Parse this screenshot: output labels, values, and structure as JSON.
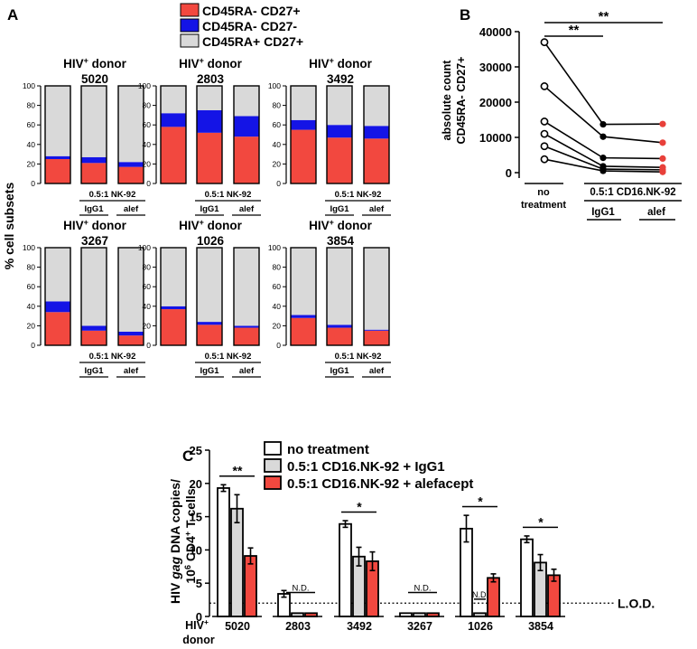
{
  "panels": {
    "a": "A",
    "b": "B",
    "c": "C"
  },
  "colors": {
    "cd45ra_neg_cd27_pos": "#f2483f",
    "cd45ra_neg_cd27_neg": "#1414e6",
    "cd45ra_pos_cd27_pos": "#d9d9d9",
    "alef_point": "#e8403a"
  },
  "legend_a": [
    "CD45RA- CD27+",
    "CD45RA- CD27-",
    "CD45RA+ CD27+"
  ],
  "chart_data": [
    {
      "type": "bar",
      "subtype": "stacked-percent",
      "ylabel": "% cell subsets",
      "ylim": [
        0,
        100
      ],
      "yticks": [
        "0",
        "20",
        "40",
        "60",
        "80",
        "100"
      ],
      "donor_label": "HIV+ donor",
      "donor_prefix": "HIV",
      "donor_sup": "+",
      "donor_suffix": " donor",
      "treatment_label": "0.5:1 NK-92",
      "group_labels": [
        "IgG1",
        "alef"
      ],
      "series": [
        "CD45RA- CD27+",
        "CD45RA- CD27-",
        "CD45RA+ CD27+"
      ],
      "donors": [
        {
          "id": "5020",
          "bars": [
            [
              25,
              3,
              72
            ],
            [
              21,
              6,
              73
            ],
            [
              17,
              5,
              78
            ]
          ]
        },
        {
          "id": "2803",
          "bars": [
            [
              58,
              14,
              28
            ],
            [
              52,
              23,
              25
            ],
            [
              48,
              21,
              31
            ]
          ]
        },
        {
          "id": "3492",
          "bars": [
            [
              55,
              10,
              35
            ],
            [
              47,
              13,
              40
            ],
            [
              46,
              13,
              41
            ]
          ]
        },
        {
          "id": "3267",
          "bars": [
            [
              34,
              11,
              55
            ],
            [
              15,
              5,
              80
            ],
            [
              10,
              4,
              86
            ]
          ]
        },
        {
          "id": "1026",
          "bars": [
            [
              37,
              3,
              60
            ],
            [
              21,
              3,
              76
            ],
            [
              18,
              2,
              80
            ]
          ]
        },
        {
          "id": "3854",
          "bars": [
            [
              28,
              3,
              69
            ],
            [
              18,
              3,
              79
            ],
            [
              15,
              1,
              84
            ]
          ]
        }
      ]
    },
    {
      "type": "line",
      "subtype": "paired-points",
      "ylabel": [
        "absolute count",
        "CD45RA- CD27+"
      ],
      "ylim": [
        0,
        40000
      ],
      "yticks": [
        "0",
        "10000",
        "20000",
        "30000",
        "40000"
      ],
      "x_labels": [
        "no",
        "treatment"
      ],
      "treatment_label": "0.5:1 CD16.NK-92",
      "group_labels": [
        "IgG1",
        "alef"
      ],
      "x": [
        "no treatment",
        "0.5:1 CD16.NK-92 + IgG1",
        "0.5:1 CD16.NK-92 + alef"
      ],
      "series": [
        {
          "values": [
            37000,
            13700,
            13800
          ]
        },
        {
          "values": [
            24500,
            10200,
            8500
          ]
        },
        {
          "values": [
            14500,
            4200,
            4000
          ]
        },
        {
          "values": [
            11000,
            1800,
            1500
          ]
        },
        {
          "values": [
            7500,
            1000,
            800
          ]
        },
        {
          "values": [
            3800,
            500,
            200
          ]
        }
      ],
      "significance": [
        {
          "from": 0,
          "to": 1,
          "label": "**"
        },
        {
          "from": 0,
          "to": 2,
          "label": "**"
        }
      ]
    },
    {
      "type": "bar",
      "subtype": "grouped-with-error",
      "ylabel_parts": [
        "HIV ",
        "gag",
        " DNA copies/",
        "10",
        "6",
        " CD4",
        "+",
        " T cells"
      ],
      "ylim": [
        0,
        25
      ],
      "yticks": [
        "0",
        "5",
        "10",
        "15",
        "20",
        "25"
      ],
      "x_title": [
        "HIV",
        "+",
        "donor"
      ],
      "legend": [
        "no treatment",
        "0.5:1 CD16.NK-92 + IgG1",
        "0.5:1 CD16.NK-92 + alefacept"
      ],
      "lod_value": 2,
      "lod_label": "L.O.D.",
      "groups": [
        {
          "donor": "5020",
          "values": [
            19.3,
            16.2,
            9.1
          ],
          "errors": [
            0.5,
            2.1,
            1.2
          ],
          "sig": "**",
          "nd": false
        },
        {
          "donor": "2803",
          "values": [
            3.4,
            0.5,
            0.5
          ],
          "errors": [
            0.5,
            0,
            0
          ],
          "sig": "N.D.",
          "nd": true
        },
        {
          "donor": "3492",
          "values": [
            13.9,
            9.0,
            8.3
          ],
          "errors": [
            0.5,
            1.4,
            1.4
          ],
          "sig": "*",
          "nd": false
        },
        {
          "donor": "3267",
          "values": [
            0.5,
            0.5,
            0.5
          ],
          "errors": [
            0,
            0,
            0
          ],
          "sig": "N.D.",
          "nd": true
        },
        {
          "donor": "1026",
          "values": [
            13.2,
            0.5,
            5.8
          ],
          "errors": [
            2.0,
            0,
            0.6
          ],
          "sig": "*",
          "nd": false,
          "extra_sig": "N.D."
        },
        {
          "donor": "3854",
          "values": [
            11.6,
            8.1,
            6.2
          ],
          "errors": [
            0.5,
            1.2,
            0.9
          ],
          "sig": "*",
          "nd": false
        }
      ]
    }
  ]
}
